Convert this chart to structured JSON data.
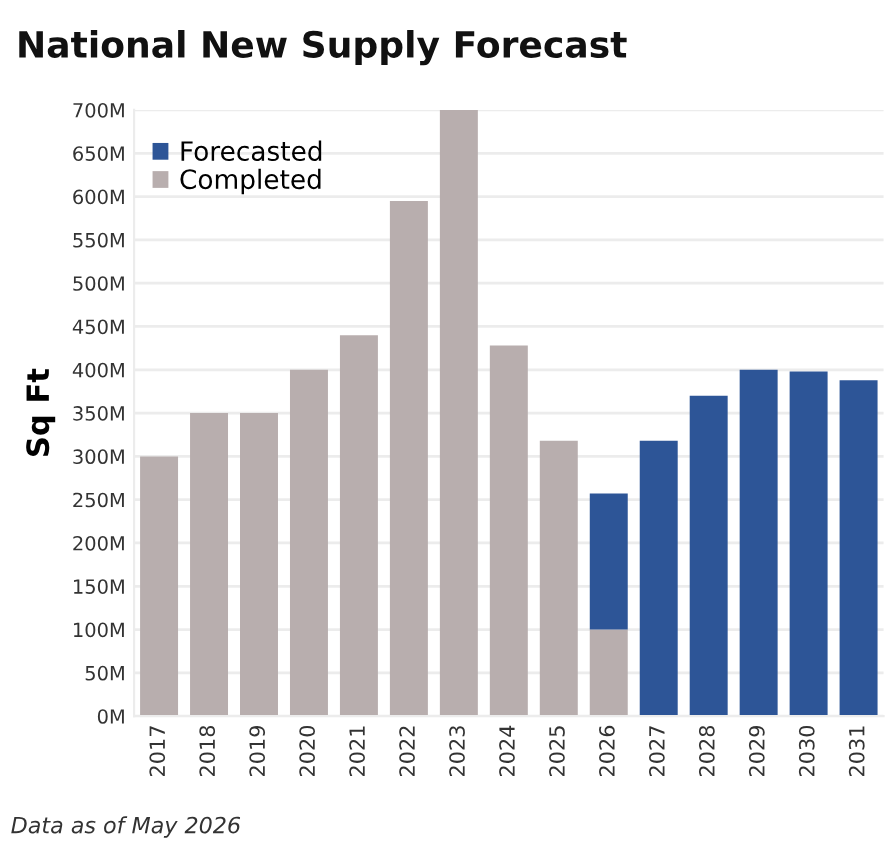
{
  "chart_data": {
    "type": "bar",
    "title": "National New Supply Forecast",
    "ylabel": "Sq Ft",
    "annotations": [
      "Data as of May 2026"
    ],
    "categories": [
      "2017",
      "2018",
      "2019",
      "2020",
      "2021",
      "2022",
      "2023",
      "2024",
      "2025",
      "2026",
      "2027",
      "2028",
      "2029",
      "2030",
      "2031"
    ],
    "stacked": true,
    "series": [
      {
        "name": "Completed",
        "color": "#b8aeae",
        "values": [
          300,
          350,
          350,
          400,
          440,
          595,
          700,
          428,
          318,
          100,
          null,
          null,
          null,
          null,
          null
        ]
      },
      {
        "name": "Forecasted",
        "color": "#2d5597",
        "values": [
          null,
          null,
          null,
          null,
          null,
          null,
          null,
          null,
          null,
          157,
          318,
          370,
          400,
          398,
          388
        ]
      }
    ],
    "ylim": [
      0,
      700
    ],
    "yticks": [
      {
        "value": 0,
        "label": "0M"
      },
      {
        "value": 50,
        "label": "50M"
      },
      {
        "value": 100,
        "label": "100M"
      },
      {
        "value": 150,
        "label": "150M"
      },
      {
        "value": 200,
        "label": "200M"
      },
      {
        "value": 250,
        "label": "250M"
      },
      {
        "value": 300,
        "label": "300M"
      },
      {
        "value": 350,
        "label": "350M"
      },
      {
        "value": 400,
        "label": "400M"
      },
      {
        "value": 450,
        "label": "450M"
      },
      {
        "value": 500,
        "label": "500M"
      },
      {
        "value": 550,
        "label": "550M"
      },
      {
        "value": 600,
        "label": "600M"
      },
      {
        "value": 650,
        "label": "650M"
      },
      {
        "value": 700,
        "label": "700M"
      }
    ],
    "grid": "y",
    "legend": "top left"
  }
}
